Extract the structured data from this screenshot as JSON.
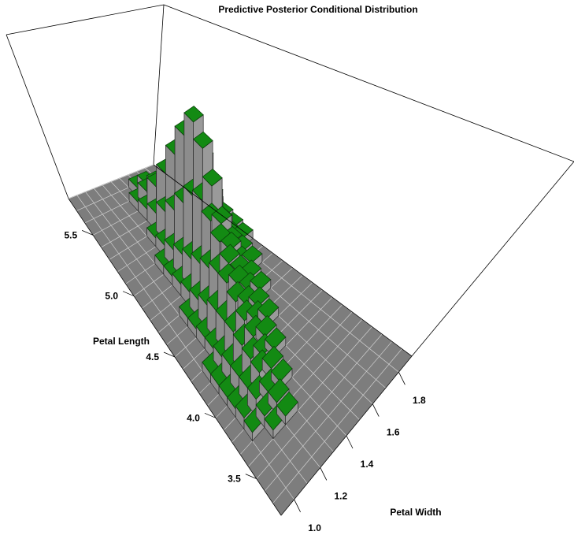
{
  "chart_data": {
    "type": "3d-bar",
    "title": "Predictive Posterior Conditional Distribution",
    "xlabel": "Petal Width",
    "ylabel": "Petal Length",
    "x_ticks": [
      "1.0",
      "1.2",
      "1.4",
      "1.6",
      "1.8"
    ],
    "y_ticks": [
      "3.5",
      "4.0",
      "4.5",
      "5.0",
      "5.5"
    ],
    "top_color": "#138a13",
    "side_color": "#8c8c8c",
    "floor_color": "#7d7d7d",
    "grid_x_start": 0.9,
    "grid_x_step": 0.1,
    "grid_y_start": 3.2,
    "grid_y_step": 0.1,
    "grid_nx": 11,
    "grid_ny": 26,
    "heights": [
      [
        0,
        0,
        0,
        0,
        0,
        0,
        0,
        0,
        0,
        0,
        0
      ],
      [
        0,
        0,
        0,
        0,
        0,
        0,
        0,
        0,
        0,
        0,
        0
      ],
      [
        0,
        0,
        0,
        0,
        0,
        0,
        0,
        0,
        0,
        0,
        0
      ],
      [
        0,
        0,
        0,
        0,
        0,
        0,
        0,
        0,
        0,
        0,
        0
      ],
      [
        0,
        0,
        0.003,
        0.003,
        0,
        0,
        0,
        0,
        0,
        0,
        0
      ],
      [
        0,
        0.003,
        0.004,
        0.004,
        0,
        0,
        0,
        0,
        0,
        0,
        0
      ],
      [
        0,
        0.004,
        0.006,
        0.004,
        0.003,
        0,
        0,
        0,
        0,
        0,
        0
      ],
      [
        0,
        0.003,
        0.006,
        0.007,
        0.004,
        0,
        0,
        0,
        0,
        0,
        0
      ],
      [
        0,
        0.003,
        0.006,
        0.008,
        0.005,
        0.003,
        0,
        0,
        0,
        0,
        0
      ],
      [
        0,
        0.003,
        0.006,
        0.009,
        0.008,
        0.004,
        0,
        0,
        0,
        0,
        0
      ],
      [
        0,
        0.003,
        0.005,
        0.01,
        0.01,
        0.006,
        0.003,
        0,
        0,
        0,
        0
      ],
      [
        0,
        0,
        0.004,
        0.01,
        0.013,
        0.008,
        0.004,
        0,
        0,
        0,
        0
      ],
      [
        0,
        0,
        0.004,
        0.01,
        0.016,
        0.012,
        0.006,
        0.003,
        0,
        0,
        0
      ],
      [
        0,
        0,
        0.003,
        0.008,
        0.016,
        0.016,
        0.009,
        0.004,
        0,
        0,
        0
      ],
      [
        0,
        0,
        0.003,
        0.006,
        0.014,
        0.02,
        0.014,
        0.006,
        0.003,
        0,
        0
      ],
      [
        0,
        0,
        0,
        0.005,
        0.012,
        0.024,
        0.02,
        0.01,
        0.004,
        0,
        0
      ],
      [
        0,
        0,
        0,
        0.004,
        0.01,
        0.028,
        0.03,
        0.014,
        0.006,
        0.003,
        0
      ],
      [
        0,
        0,
        0,
        0.003,
        0.008,
        0.026,
        0.04,
        0.02,
        0.008,
        0.004,
        0
      ],
      [
        0,
        0,
        0,
        0.003,
        0.006,
        0.02,
        0.046,
        0.03,
        0.012,
        0.005,
        0
      ],
      [
        0,
        0,
        0,
        0,
        0.004,
        0.014,
        0.038,
        0.034,
        0.014,
        0.006,
        0
      ],
      [
        0,
        0,
        0,
        0,
        0.003,
        0.01,
        0.028,
        0.028,
        0.012,
        0.005,
        0
      ],
      [
        0,
        0,
        0,
        0,
        0,
        0.006,
        0.018,
        0.018,
        0.008,
        0.004,
        0
      ],
      [
        0,
        0,
        0,
        0,
        0,
        0.004,
        0.01,
        0.01,
        0.005,
        0.003,
        0
      ],
      [
        0,
        0,
        0,
        0,
        0,
        0.003,
        0.005,
        0.006,
        0.003,
        0,
        0
      ],
      [
        0,
        0,
        0,
        0,
        0,
        0,
        0.003,
        0.003,
        0,
        0,
        0
      ],
      [
        0,
        0,
        0,
        0,
        0,
        0,
        0,
        0,
        0,
        0,
        0
      ]
    ]
  }
}
